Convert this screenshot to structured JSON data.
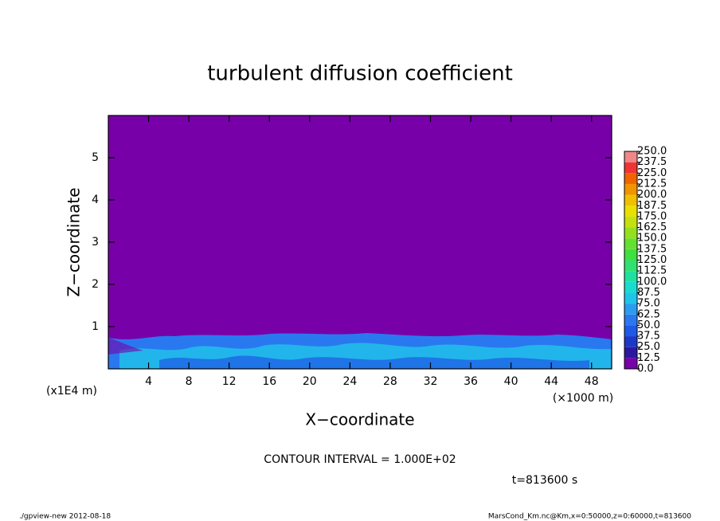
{
  "chart_data": {
    "type": "contour",
    "title": "turbulent diffusion coefficient",
    "x_label": "X−coordinate",
    "y_label": "Z−coordinate",
    "x_unit_label": "(×1000 m)",
    "y_unit_label": "(x1E4 m)",
    "xlim": [
      0,
      50
    ],
    "xticks": [
      4,
      8,
      12,
      16,
      20,
      24,
      28,
      32,
      36,
      40,
      44,
      48
    ],
    "ylim": [
      0,
      6
    ],
    "yticks": [
      1,
      2,
      3,
      4,
      5
    ],
    "levels": [
      {
        "value": 0,
        "label": "0.0"
      },
      {
        "value": 12.5,
        "label": "12.5"
      },
      {
        "value": 25,
        "label": "25.0"
      },
      {
        "value": 37.5,
        "label": "37.5"
      },
      {
        "value": 50,
        "label": "50.0"
      },
      {
        "value": 62.5,
        "label": "62.5"
      },
      {
        "value": 75,
        "label": "75.0"
      },
      {
        "value": 87.5,
        "label": "87.5"
      },
      {
        "value": 100,
        "label": "100.0"
      },
      {
        "value": 112.5,
        "label": "112.5"
      },
      {
        "value": 125,
        "label": "125.0"
      },
      {
        "value": 137.5,
        "label": "137.5"
      },
      {
        "value": 150,
        "label": "150.0"
      },
      {
        "value": 162.5,
        "label": "162.5"
      },
      {
        "value": 175,
        "label": "175.0"
      },
      {
        "value": 187.5,
        "label": "187.5"
      },
      {
        "value": 200,
        "label": "200.0"
      },
      {
        "value": 212.5,
        "label": "212.5"
      },
      {
        "value": 225,
        "label": "225.0"
      },
      {
        "value": 237.5,
        "label": "237.5"
      },
      {
        "value": 250,
        "label": "250.0"
      }
    ],
    "colors": [
      "#7800a8",
      "#2c18a0",
      "#1c38c8",
      "#1e58e6",
      "#2a78f0",
      "#2a9cf0",
      "#20c4ea",
      "#18dcd0",
      "#20e0a0",
      "#30e070",
      "#40e040",
      "#64e030",
      "#94e020",
      "#c4e010",
      "#e8e000",
      "#f0c000",
      "#f09400",
      "#f06400",
      "#f03434",
      "#f08888"
    ],
    "contour_interval": "CONTOUR INTERVAL = 1.000E+02",
    "time": "t=813600 s"
  },
  "footer": {
    "left": "./gpview-new  2012-08-18",
    "right": "MarsCond_Km.nc@Km,x=0:50000,z=0:60000,t=813600"
  }
}
